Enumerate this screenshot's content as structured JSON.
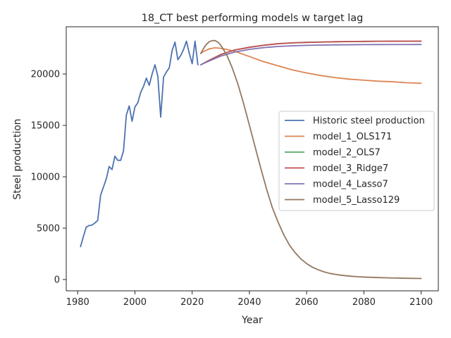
{
  "chart_data": {
    "type": "line",
    "title": "18_CT best performing models w target lag",
    "xlabel": "Year",
    "ylabel": "Steel production",
    "xlim": [
      1976,
      2106
    ],
    "ylim": [
      -1100,
      24600
    ],
    "xticks": [
      1980,
      2000,
      2020,
      2040,
      2060,
      2080,
      2100
    ],
    "yticks": [
      0,
      5000,
      10000,
      15000,
      20000
    ],
    "legend_position": "center-right",
    "grid": false,
    "series": [
      {
        "name": "Historic steel production",
        "color": "#4c72b0",
        "x": [
          1981,
          1982,
          1983,
          1984,
          1985,
          1986,
          1987,
          1988,
          1989,
          1990,
          1991,
          1992,
          1993,
          1994,
          1995,
          1996,
          1997,
          1998,
          1999,
          2000,
          2001,
          2002,
          2003,
          2004,
          2005,
          2006,
          2007,
          2008,
          2009,
          2010,
          2011,
          2012,
          2013,
          2014,
          2015,
          2016,
          2017,
          2018,
          2019,
          2020,
          2021,
          2022
        ],
        "y": [
          3200,
          4200,
          5100,
          5250,
          5300,
          5500,
          5750,
          8200,
          9000,
          9800,
          11000,
          10700,
          12000,
          11600,
          11600,
          12500,
          16000,
          16900,
          15400,
          16800,
          17200,
          18200,
          18800,
          19600,
          18900,
          20000,
          20900,
          19800,
          15800,
          19700,
          20200,
          20600,
          22300,
          23100,
          21400,
          21800,
          22400,
          23200,
          22000,
          21000,
          23200,
          20900
        ]
      },
      {
        "name": "model_1_OLS171",
        "color": "#dd8452",
        "x": [
          2023,
          2024,
          2026,
          2028,
          2030,
          2032,
          2035,
          2040,
          2045,
          2050,
          2055,
          2060,
          2065,
          2070,
          2075,
          2080,
          2085,
          2090,
          2095,
          2100
        ],
        "y": [
          22000,
          22200,
          22450,
          22550,
          22500,
          22400,
          22200,
          21700,
          21200,
          20800,
          20400,
          20100,
          19850,
          19650,
          19500,
          19400,
          19300,
          19250,
          19150,
          19100
        ]
      },
      {
        "name": "model_2_OLS7",
        "color": "#55a868",
        "x": [
          2023,
          2025,
          2030,
          2035,
          2040,
          2045,
          2050,
          2055,
          2060,
          2065,
          2070,
          2075,
          2080,
          2085,
          2090,
          2095,
          2100
        ],
        "y": [
          20900,
          21200,
          21900,
          22350,
          22600,
          22800,
          22950,
          23030,
          23080,
          23110,
          23140,
          23160,
          23175,
          23185,
          23190,
          23195,
          23200
        ]
      },
      {
        "name": "model_3_Ridge7",
        "color": "#c44e52",
        "x": [
          2023,
          2025,
          2030,
          2035,
          2040,
          2045,
          2050,
          2055,
          2060,
          2065,
          2070,
          2075,
          2080,
          2085,
          2090,
          2095,
          2100
        ],
        "y": [
          20900,
          21200,
          21900,
          22350,
          22600,
          22800,
          22950,
          23030,
          23080,
          23110,
          23140,
          23160,
          23175,
          23185,
          23190,
          23195,
          23200
        ]
      },
      {
        "name": "model_4_Lasso7",
        "color": "#8172b3",
        "x": [
          2023,
          2025,
          2030,
          2035,
          2040,
          2045,
          2050,
          2055,
          2060,
          2065,
          2070,
          2075,
          2080,
          2085,
          2090,
          2095,
          2100
        ],
        "y": [
          20900,
          21150,
          21750,
          22150,
          22400,
          22570,
          22680,
          22750,
          22790,
          22820,
          22840,
          22850,
          22860,
          22865,
          22870,
          22870,
          22875
        ]
      },
      {
        "name": "model_5_Lasso129",
        "color": "#937860",
        "x": [
          2023,
          2024,
          2025,
          2026,
          2027,
          2028,
          2029,
          2030,
          2032,
          2034,
          2036,
          2038,
          2040,
          2042,
          2044,
          2046,
          2048,
          2050,
          2052,
          2054,
          2056,
          2058,
          2060,
          2062,
          2064,
          2066,
          2068,
          2070,
          2072,
          2074,
          2076,
          2078,
          2080,
          2085,
          2090,
          2095,
          2100
        ],
        "y": [
          22000,
          22500,
          22900,
          23150,
          23250,
          23250,
          23100,
          22800,
          21900,
          20600,
          19000,
          17100,
          15000,
          12900,
          10800,
          8800,
          7000,
          5600,
          4350,
          3350,
          2600,
          2000,
          1550,
          1200,
          950,
          750,
          600,
          500,
          420,
          360,
          310,
          270,
          240,
          190,
          150,
          120,
          100
        ]
      }
    ]
  }
}
